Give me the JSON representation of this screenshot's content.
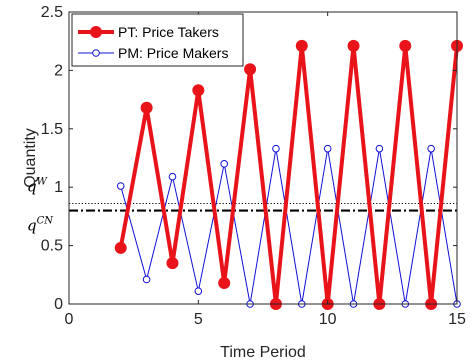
{
  "chart_data": {
    "type": "line",
    "title": "",
    "xlabel": "Time Period",
    "ylabel": "Quantity",
    "xlim": [
      0,
      15
    ],
    "ylim": [
      0,
      2.5
    ],
    "xticks": [
      0,
      5,
      10,
      15
    ],
    "yticks": [
      0,
      0.5,
      1,
      1.5,
      2,
      2.5
    ],
    "xtick_labels": [
      "0",
      "5",
      "10",
      "15"
    ],
    "ytick_labels": [
      "0",
      "0.5",
      "1",
      "1.5",
      "2",
      "2.5"
    ],
    "grid": false,
    "legend_position": "top-left",
    "x": [
      2,
      3,
      4,
      5,
      6,
      7,
      8,
      9,
      10,
      11,
      12,
      13,
      14,
      15
    ],
    "series": [
      {
        "name": "PT: Price Takers",
        "color": "#e8141a",
        "marker": "filled-circle",
        "values": [
          0.48,
          1.68,
          0.35,
          1.83,
          0.18,
          2.01,
          0.0,
          2.21,
          0.0,
          2.21,
          0.0,
          2.21,
          0.0,
          2.21
        ]
      },
      {
        "name": "PM: Price Makers",
        "color": "#1010d8",
        "marker": "open-circle",
        "values": [
          1.01,
          0.21,
          1.09,
          0.11,
          1.2,
          0.0,
          1.33,
          0.0,
          1.33,
          0.0,
          1.33,
          0.0,
          1.33,
          0.0
        ]
      }
    ],
    "reference_lines": [
      {
        "label_base": "q",
        "label_sup": "W",
        "value": 0.86,
        "style": "dotted",
        "color": "#000000"
      },
      {
        "label_base": "q",
        "label_sup": "CN",
        "value": 0.8,
        "style": "dash-dot",
        "color": "#000000"
      }
    ]
  }
}
